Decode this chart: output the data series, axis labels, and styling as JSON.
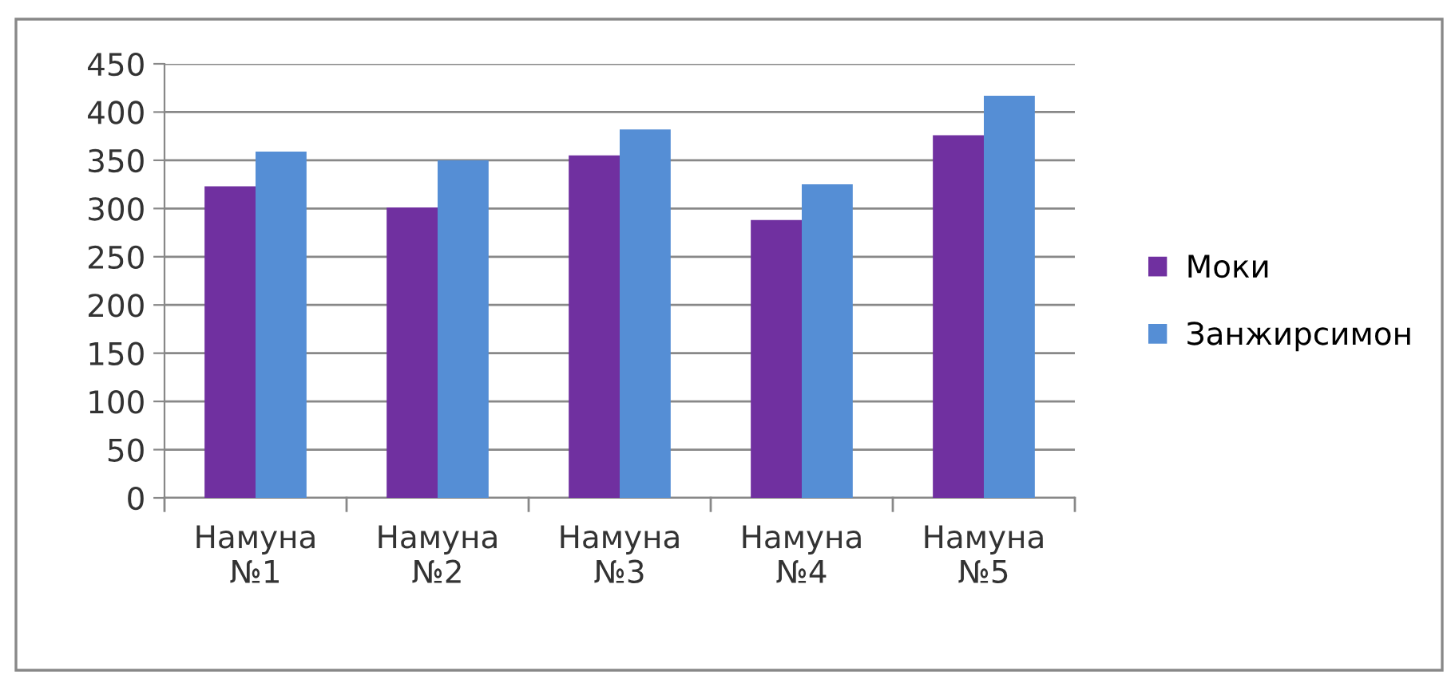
{
  "chart_data": {
    "type": "bar",
    "categories": [
      "Намуна\n№1",
      "Намуна\n№2",
      "Намуна\n№3",
      "Намуна\n№4",
      "Намуна\n№5"
    ],
    "series": [
      {
        "name": "Моки",
        "color": "#7030a0",
        "values": [
          323,
          301,
          355,
          288,
          376
        ]
      },
      {
        "name": "Занжирсимон",
        "color": "#558ed5",
        "values": [
          359,
          350,
          382,
          325,
          417
        ]
      }
    ],
    "ylim": [
      0,
      450
    ],
    "yticks": [
      0,
      50,
      100,
      150,
      200,
      250,
      300,
      350,
      400,
      450
    ],
    "grid": "y",
    "legend": "right"
  }
}
